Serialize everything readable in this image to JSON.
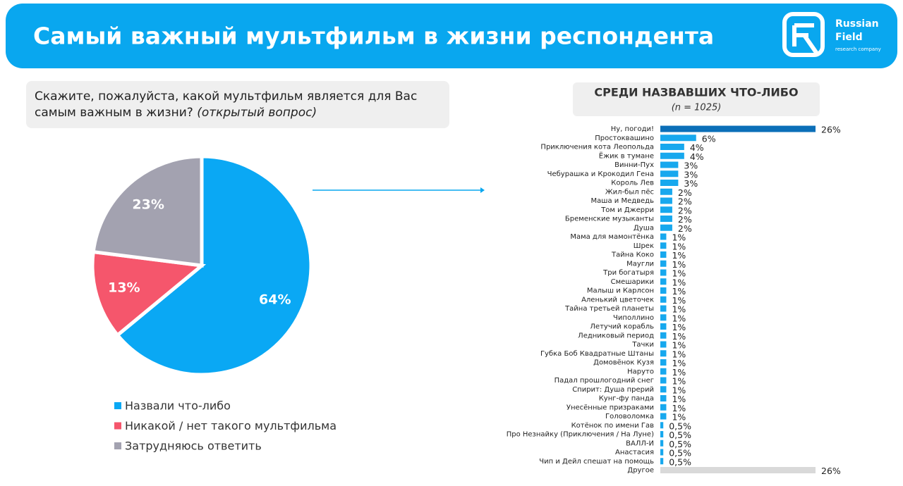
{
  "header": {
    "title": "Самый важный мультфильм в жизни респондента",
    "logo": {
      "name_1": "Russian",
      "name_2": "Field",
      "tagline": "research company"
    }
  },
  "question": {
    "line_1": "Скажите, пожалуйста, какой мультфильм является для Вас",
    "line_2": "самым важным в жизни?",
    "note": "(открытый вопрос)"
  },
  "chart_data": [
    {
      "type": "pie",
      "categories": [
        "Назвали что-либо",
        "Никакой / нет такого мультфильма",
        "Затрудняюсь ответить"
      ],
      "values": [
        64,
        13,
        23
      ],
      "value_labels": [
        "64%",
        "13%",
        "23%"
      ],
      "colors": [
        "#0aa8f4",
        "#f5566c",
        "#a3a2b0"
      ]
    },
    {
      "type": "bar",
      "title": "СРЕДИ НАЗВАВШИХ ЧТО-ЛИБО",
      "subtitle": "(n = 1025)",
      "categories": [
        "Ну, погоди!",
        "Простоквашино",
        "Приключения кота Леопольда",
        "Ёжик в тумане",
        "Винни-Пух",
        "Чебурашка и Крокодил Гена",
        "Король Лев",
        "Жил-был пёс",
        "Маша и Медведь",
        "Том и Джерри",
        "Бременские музыканты",
        "Душа",
        "Мама для мамонтёнка",
        "Шрек",
        "Тайна Коко",
        "Маугли",
        "Три богатыря",
        "Смешарики",
        "Малыш и Карлсон",
        "Аленький цветочек",
        "Тайна третьей планеты",
        "Чиполлино",
        "Летучий корабль",
        "Ледниковый период",
        "Тачки",
        "Губка Боб Квадратные Штаны",
        "Домовёнок Кузя",
        "Наруто",
        "Падал прошлогодний снег",
        "Спирит: Душа прерий",
        "Кунг-фу панда",
        "Унесённые призраками",
        "Головоломка",
        "Котёнок по имени Гав",
        "Про Незнайку (Приключения / На Луне)",
        "ВАЛЛ-И",
        "Анастасия",
        "Чип и Дейл спешат на помощь",
        "Другое"
      ],
      "values": [
        26,
        6,
        4,
        4,
        3,
        3,
        3,
        2,
        2,
        2,
        2,
        2,
        1,
        1,
        1,
        1,
        1,
        1,
        1,
        1,
        1,
        1,
        1,
        1,
        1,
        1,
        1,
        1,
        1,
        1,
        1,
        1,
        1,
        0.5,
        0.5,
        0.5,
        0.5,
        0.5,
        26
      ],
      "value_labels": [
        "26%",
        "6%",
        "4%",
        "4%",
        "3%",
        "3%",
        "3%",
        "2%",
        "2%",
        "2%",
        "2%",
        "2%",
        "1%",
        "1%",
        "1%",
        "1%",
        "1%",
        "1%",
        "1%",
        "1%",
        "1%",
        "1%",
        "1%",
        "1%",
        "1%",
        "1%",
        "1%",
        "1%",
        "1%",
        "1%",
        "1%",
        "1%",
        "1%",
        "0,5%",
        "0,5%",
        "0,5%",
        "0,5%",
        "0,5%",
        "26%"
      ],
      "colors": [
        "#0b6fb8",
        "#17a8ee",
        "#17a8ee",
        "#17a8ee",
        "#17a8ee",
        "#17a8ee",
        "#17a8ee",
        "#17a8ee",
        "#17a8ee",
        "#17a8ee",
        "#17a8ee",
        "#17a8ee",
        "#17a8ee",
        "#17a8ee",
        "#17a8ee",
        "#17a8ee",
        "#17a8ee",
        "#17a8ee",
        "#17a8ee",
        "#17a8ee",
        "#17a8ee",
        "#17a8ee",
        "#17a8ee",
        "#17a8ee",
        "#17a8ee",
        "#17a8ee",
        "#17a8ee",
        "#17a8ee",
        "#17a8ee",
        "#17a8ee",
        "#17a8ee",
        "#17a8ee",
        "#17a8ee",
        "#17a8ee",
        "#17a8ee",
        "#17a8ee",
        "#17a8ee",
        "#17a8ee",
        "#d9d9d9"
      ]
    }
  ]
}
